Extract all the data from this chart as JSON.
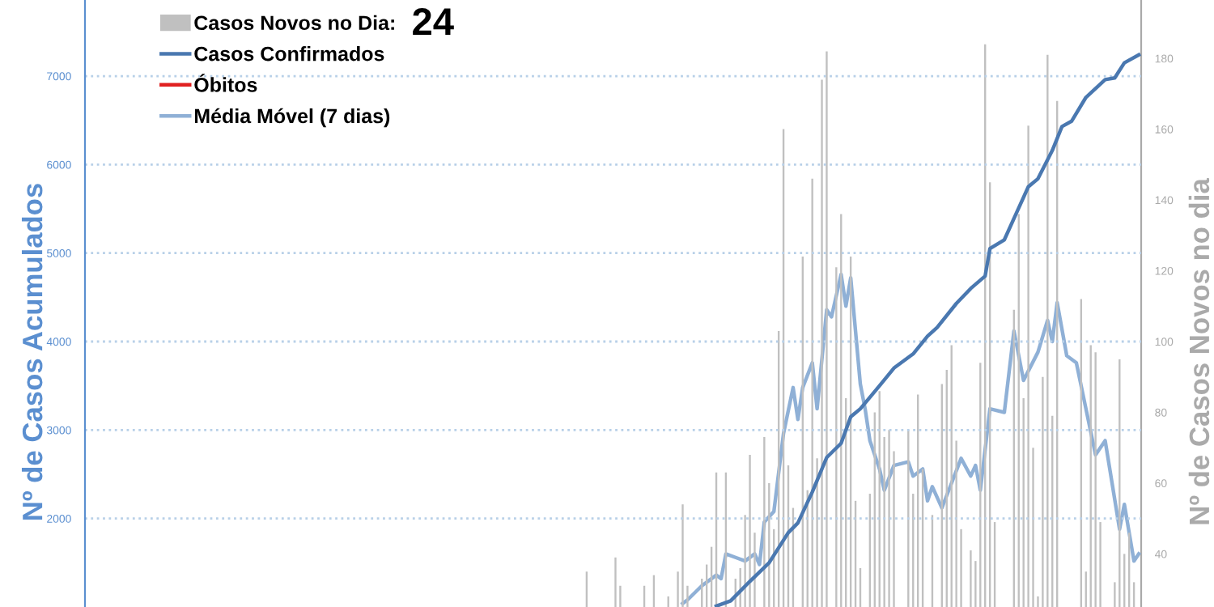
{
  "chart_data": {
    "type": "bar",
    "categories": [
      null,
      null,
      null,
      null,
      null,
      null,
      null,
      null,
      null,
      null,
      null,
      null,
      null,
      null,
      null,
      null,
      null,
      null,
      null,
      null,
      null,
      null,
      null,
      null,
      null,
      null,
      null,
      null,
      null,
      null,
      null,
      null,
      null,
      null,
      null,
      null,
      null,
      null,
      null,
      null,
      null,
      null,
      null,
      null,
      null,
      null,
      null,
      null,
      null,
      null,
      null,
      null,
      null,
      null,
      null,
      null,
      null,
      null,
      null,
      null,
      null,
      null,
      null,
      null,
      null,
      null,
      null,
      null,
      null,
      null,
      null,
      null,
      null,
      null,
      null,
      null,
      null,
      null,
      null,
      null,
      null,
      null,
      null,
      null,
      null,
      null,
      null,
      null,
      null,
      null,
      null,
      null,
      null,
      null,
      null,
      null,
      null,
      null,
      null,
      null,
      null,
      null,
      null,
      null,
      null,
      null,
      null,
      null,
      null,
      null,
      null,
      null,
      null,
      null,
      null,
      null,
      null,
      null,
      null,
      null,
      null,
      null,
      null,
      null,
      null,
      null,
      null,
      null,
      null,
      null,
      null,
      null,
      null,
      null,
      null,
      null,
      null,
      null,
      null,
      null,
      null,
      null,
      null,
      null,
      null,
      null,
      null,
      null,
      null,
      null,
      null,
      null,
      null,
      null,
      null,
      null,
      null,
      null,
      null,
      null,
      null,
      null,
      null,
      null,
      null,
      null,
      null,
      null,
      null,
      null,
      null,
      null,
      null,
      null,
      null,
      null,
      null,
      null,
      null,
      null,
      null,
      null,
      null,
      null,
      null,
      null,
      null,
      null,
      null,
      null,
      null,
      null,
      null,
      null,
      null,
      null,
      null,
      null,
      null,
      null,
      null,
      null,
      null,
      null,
      null,
      null,
      null,
      null,
      null,
      null,
      null,
      null,
      null,
      null,
      null,
      null,
      null,
      null,
      null,
      null
    ],
    "series": [
      {
        "name": "Casos Novos no Dia:",
        "axis": "y2",
        "color": "#c0c0c0",
        "values": [
          null,
          null,
          null,
          null,
          null,
          null,
          null,
          null,
          null,
          null,
          null,
          null,
          null,
          null,
          null,
          null,
          null,
          null,
          null,
          null,
          null,
          null,
          null,
          null,
          null,
          null,
          null,
          null,
          null,
          null,
          null,
          null,
          null,
          null,
          null,
          null,
          null,
          null,
          null,
          null,
          null,
          null,
          null,
          null,
          null,
          null,
          null,
          null,
          null,
          null,
          null,
          null,
          null,
          null,
          null,
          null,
          null,
          null,
          null,
          null,
          null,
          null,
          null,
          null,
          null,
          null,
          null,
          null,
          null,
          null,
          null,
          null,
          null,
          null,
          null,
          null,
          null,
          null,
          null,
          null,
          null,
          null,
          null,
          null,
          null,
          null,
          null,
          null,
          null,
          null,
          null,
          null,
          null,
          null,
          null,
          null,
          null,
          null,
          null,
          null,
          null,
          null,
          null,
          null,
          35,
          null,
          null,
          null,
          null,
          null,
          39,
          31,
          null,
          null,
          null,
          null,
          31,
          null,
          34,
          null,
          null,
          28,
          null,
          35,
          54,
          31,
          null,
          null,
          33,
          37,
          42,
          63,
          null,
          63,
          null,
          33,
          36,
          51,
          68,
          46,
          null,
          73,
          60,
          47,
          103,
          160,
          65,
          53,
          null,
          124,
          58,
          146,
          67,
          174,
          182,
          null,
          121,
          136,
          84,
          124,
          55,
          36,
          null,
          57,
          80,
          86,
          73,
          75,
          69,
          null,
          null,
          75,
          57,
          85,
          64,
          null,
          51,
          null,
          88,
          92,
          99,
          72,
          47,
          null,
          41,
          38,
          94,
          184,
          145,
          49,
          null,
          null,
          null,
          109,
          136,
          84,
          161,
          70,
          28,
          90,
          181,
          79,
          168,
          null,
          null,
          null,
          null,
          112,
          35,
          99,
          97,
          49,
          null,
          null,
          32,
          95,
          40,
          46,
          32,
          null
        ]
      },
      {
        "name": "Casos Confirmados",
        "type": "line",
        "color": "#4a78b0",
        "values": [
          null,
          null,
          null,
          null,
          null,
          null,
          null,
          null,
          null,
          null,
          null,
          null,
          null,
          null,
          null,
          null,
          null,
          null,
          null,
          null,
          null,
          null,
          null,
          null,
          null,
          null,
          null,
          null,
          null,
          null,
          null,
          null,
          null,
          null,
          null,
          null,
          null,
          null,
          null,
          null,
          null,
          null,
          null,
          null,
          null,
          null,
          null,
          null,
          null,
          null,
          null,
          null,
          null,
          null,
          null,
          null,
          null,
          null,
          null,
          null,
          null,
          null,
          null,
          null,
          null,
          null,
          null,
          null,
          null,
          null,
          null,
          null,
          null,
          null,
          null,
          null,
          null,
          null,
          null,
          null,
          null,
          null,
          null,
          null,
          null,
          null,
          null,
          null,
          null,
          null,
          null,
          null,
          null,
          null,
          null,
          null,
          null,
          null,
          null,
          null,
          null,
          null,
          null,
          null,
          null,
          null,
          null,
          null,
          null,
          null,
          null,
          null,
          null,
          null,
          null,
          null,
          null,
          null,
          null,
          null,
          null,
          null,
          null,
          null,
          null,
          null,
          null,
          null,
          null,
          null,
          null,
          1010,
          null,
          null,
          1070,
          null,
          null,
          null,
          1290,
          null,
          null,
          null,
          1500,
          null,
          null,
          null,
          1840,
          null,
          1950,
          null,
          null,
          2300,
          null,
          null,
          2690,
          null,
          null,
          2850,
          null,
          3150,
          null,
          3240,
          null,
          null,
          null,
          3500,
          null,
          null,
          3700,
          null,
          null,
          null,
          3860,
          null,
          null,
          4060,
          null,
          4160,
          null,
          null,
          null,
          4430,
          null,
          null,
          4600,
          null,
          null,
          4740,
          5050,
          null,
          null,
          5150,
          null,
          null,
          5510,
          null,
          5750,
          null,
          5840,
          null,
          null,
          6160,
          null,
          6430,
          null,
          6490,
          null,
          null,
          6760,
          null,
          null,
          null,
          6960,
          null,
          6980,
          null,
          7150,
          null,
          null,
          7240
        ]
      },
      {
        "name": "Óbitos",
        "type": "line",
        "color": "#e02020",
        "values": [
          null,
          null,
          null,
          null,
          null,
          null,
          null,
          null,
          null,
          null,
          null,
          null,
          null,
          null,
          null,
          null,
          null,
          null,
          null,
          null,
          null,
          null,
          null,
          null,
          null,
          null,
          null,
          null,
          null,
          null,
          null,
          null,
          null,
          null,
          null,
          null,
          null,
          null,
          null,
          null,
          null,
          null,
          null,
          null,
          null,
          null,
          null,
          null,
          null,
          null,
          null,
          null,
          null,
          null,
          null,
          null,
          null,
          null,
          null,
          null,
          null,
          null,
          null,
          null,
          null,
          null,
          null,
          null,
          null,
          null,
          null,
          null,
          null,
          null,
          null,
          null,
          null,
          null,
          null,
          null,
          null,
          null,
          null,
          null,
          null,
          null,
          null,
          null,
          null,
          null,
          null,
          null,
          null,
          null,
          null,
          null,
          null,
          null,
          null,
          null,
          null,
          null,
          null,
          null,
          null,
          null,
          null,
          null,
          null,
          null,
          null,
          null,
          null,
          null,
          null,
          null,
          null,
          null,
          null,
          null,
          null,
          null,
          null,
          null,
          null,
          null,
          null,
          null,
          null,
          null,
          null,
          null,
          null,
          null,
          null,
          null,
          null,
          null,
          null,
          null,
          null,
          null,
          null,
          null,
          null,
          null,
          null,
          null,
          null,
          null,
          null,
          null,
          null,
          null,
          null,
          null,
          null,
          null,
          null,
          null,
          null,
          null,
          null,
          null,
          null,
          null,
          null,
          null,
          null,
          null,
          null,
          null,
          null,
          null,
          null,
          null,
          null,
          null,
          null,
          null,
          null,
          null,
          null,
          null,
          null,
          null,
          null,
          null,
          null,
          null,
          null,
          null,
          null,
          null,
          null,
          null,
          null,
          null,
          null,
          null,
          null,
          null,
          null,
          null,
          null,
          null,
          null,
          null,
          null,
          null,
          null,
          null,
          null,
          null,
          null,
          null,
          null,
          null,
          null,
          null
        ]
      },
      {
        "name": "Média Móvel (7 dias)",
        "type": "line",
        "axis": "y2",
        "color": "#8fb0d6",
        "values": [
          null,
          null,
          null,
          null,
          null,
          null,
          null,
          null,
          null,
          null,
          null,
          null,
          null,
          null,
          null,
          null,
          null,
          null,
          null,
          null,
          null,
          null,
          null,
          null,
          null,
          null,
          null,
          null,
          null,
          null,
          null,
          null,
          null,
          null,
          null,
          null,
          null,
          null,
          null,
          null,
          null,
          null,
          null,
          null,
          null,
          null,
          null,
          null,
          null,
          null,
          null,
          null,
          null,
          null,
          null,
          null,
          null,
          null,
          null,
          null,
          null,
          null,
          null,
          null,
          null,
          null,
          null,
          null,
          null,
          null,
          null,
          null,
          null,
          null,
          null,
          null,
          null,
          null,
          null,
          null,
          null,
          null,
          null,
          null,
          null,
          null,
          null,
          null,
          null,
          null,
          null,
          null,
          null,
          null,
          null,
          null,
          null,
          null,
          null,
          null,
          null,
          null,
          null,
          null,
          null,
          null,
          null,
          null,
          null,
          null,
          null,
          null,
          null,
          null,
          null,
          null,
          null,
          null,
          null,
          null,
          null,
          null,
          null,
          null,
          26,
          27,
          null,
          null,
          31,
          null,
          null,
          34,
          33,
          40,
          null,
          39,
          null,
          38,
          null,
          40,
          37,
          49,
          null,
          52,
          null,
          74,
          null,
          87,
          78,
          87,
          null,
          94,
          81,
          null,
          109,
          107,
          null,
          119,
          110,
          118,
          null,
          88,
          81,
          72,
          null,
          64,
          58,
          null,
          65,
          null,
          null,
          66,
          62,
          null,
          64,
          55,
          59,
          null,
          53,
          null,
          60,
          null,
          67,
          null,
          62,
          65,
          58,
          null,
          81,
          null,
          null,
          80,
          null,
          103,
          null,
          89,
          null,
          null,
          97,
          null,
          106,
          100,
          111,
          null,
          96,
          null,
          94,
          null,
          81,
          null,
          68,
          null,
          72,
          null,
          null,
          47,
          54,
          null,
          38,
          40
        ]
      }
    ],
    "ylabel": "Nº de Casos Acumulados",
    "y2label": "Nº de Casos Novos no dia",
    "ylim": [
      1000,
      7860
    ],
    "yticks": [
      2000,
      3000,
      4000,
      5000,
      6000,
      7000
    ],
    "y2lim": [
      25,
      196.5
    ],
    "y2ticks": [
      40,
      60,
      80,
      100,
      120,
      140,
      160,
      180
    ],
    "grid": "y",
    "legend": "top left",
    "tick_labels": "y",
    "annotations": [
      "24"
    ]
  }
}
